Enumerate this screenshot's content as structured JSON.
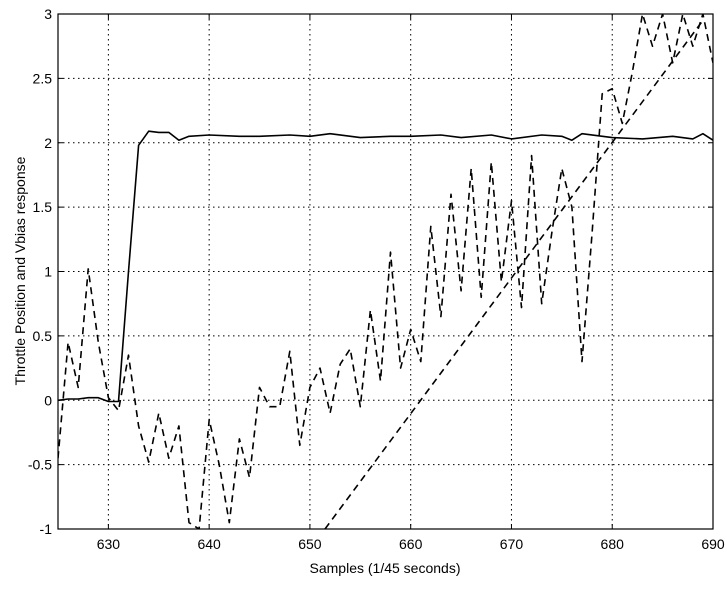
{
  "chart_data": {
    "type": "line",
    "title": "",
    "xlabel": "Samples (1/45 seconds)",
    "ylabel": "Throttle Position and Vbias response",
    "xlim": [
      625,
      690
    ],
    "ylim": [
      -1,
      3
    ],
    "xticks": [
      630,
      640,
      650,
      660,
      670,
      680,
      690
    ],
    "yticks": [
      -1,
      -0.5,
      0,
      0.5,
      1,
      1.5,
      2,
      2.5,
      3
    ],
    "xtick_labels": [
      "630",
      "640",
      "650",
      "660",
      "670",
      "680",
      "690"
    ],
    "ytick_labels": [
      "-1",
      "-0.5",
      "0",
      "0.5",
      "1",
      "1.5",
      "2",
      "2.5",
      "3"
    ],
    "grid": true,
    "series": [
      {
        "style": "solid",
        "x": [
          625,
          626,
          627,
          628,
          629,
          630,
          631,
          632,
          633,
          634,
          635,
          636,
          637,
          638,
          640,
          643,
          645,
          648,
          650,
          652,
          655,
          658,
          660,
          663,
          665,
          668,
          670,
          673,
          675,
          676,
          677,
          680,
          683,
          686,
          688,
          689,
          690
        ],
        "y": [
          0,
          0.01,
          0.01,
          0.02,
          0.02,
          -0.01,
          -0.01,
          1.0,
          1.98,
          2.09,
          2.08,
          2.08,
          2.02,
          2.05,
          2.06,
          2.05,
          2.05,
          2.06,
          2.05,
          2.07,
          2.04,
          2.05,
          2.05,
          2.06,
          2.04,
          2.06,
          2.03,
          2.06,
          2.05,
          2.02,
          2.07,
          2.04,
          2.03,
          2.05,
          2.03,
          2.07,
          2.02
        ]
      },
      {
        "style": "dashed",
        "x": [
          625,
          626,
          627,
          628,
          629,
          630,
          631,
          632,
          633,
          634,
          635,
          636,
          637,
          638,
          639,
          640,
          641,
          642,
          643,
          644,
          645,
          646,
          647,
          648,
          649,
          650,
          651,
          652,
          653,
          654,
          655,
          656,
          657,
          658,
          659,
          660,
          661,
          662,
          663,
          664,
          665,
          666,
          667,
          668,
          669,
          670,
          671,
          672,
          673,
          674,
          675,
          676,
          677,
          678,
          679,
          680,
          681,
          682,
          683,
          684,
          685,
          686,
          687,
          688,
          689,
          690
        ],
        "y": [
          -0.45,
          0.45,
          0.1,
          1.02,
          0.45,
          0.02,
          -0.08,
          0.35,
          -0.2,
          -0.48,
          -0.1,
          -0.45,
          -0.2,
          -0.95,
          -1.0,
          -0.15,
          -0.5,
          -0.95,
          -0.3,
          -0.6,
          0.1,
          -0.05,
          -0.05,
          0.38,
          -0.35,
          0.1,
          0.25,
          -0.1,
          0.28,
          0.4,
          -0.05,
          0.7,
          0.15,
          1.15,
          0.25,
          0.55,
          0.3,
          1.35,
          0.65,
          1.6,
          0.85,
          1.8,
          0.8,
          1.85,
          0.92,
          1.55,
          0.72,
          1.9,
          0.75,
          1.3,
          1.8,
          1.5,
          0.3,
          1.3,
          2.38,
          2.42,
          2.15,
          2.55,
          3.0,
          2.75,
          3.0,
          2.62,
          3.0,
          2.75,
          3.0,
          2.62
        ]
      },
      {
        "style": "dashed",
        "x": [
          651.5,
          689
        ],
        "y": [
          -1,
          2.95
        ]
      }
    ]
  }
}
